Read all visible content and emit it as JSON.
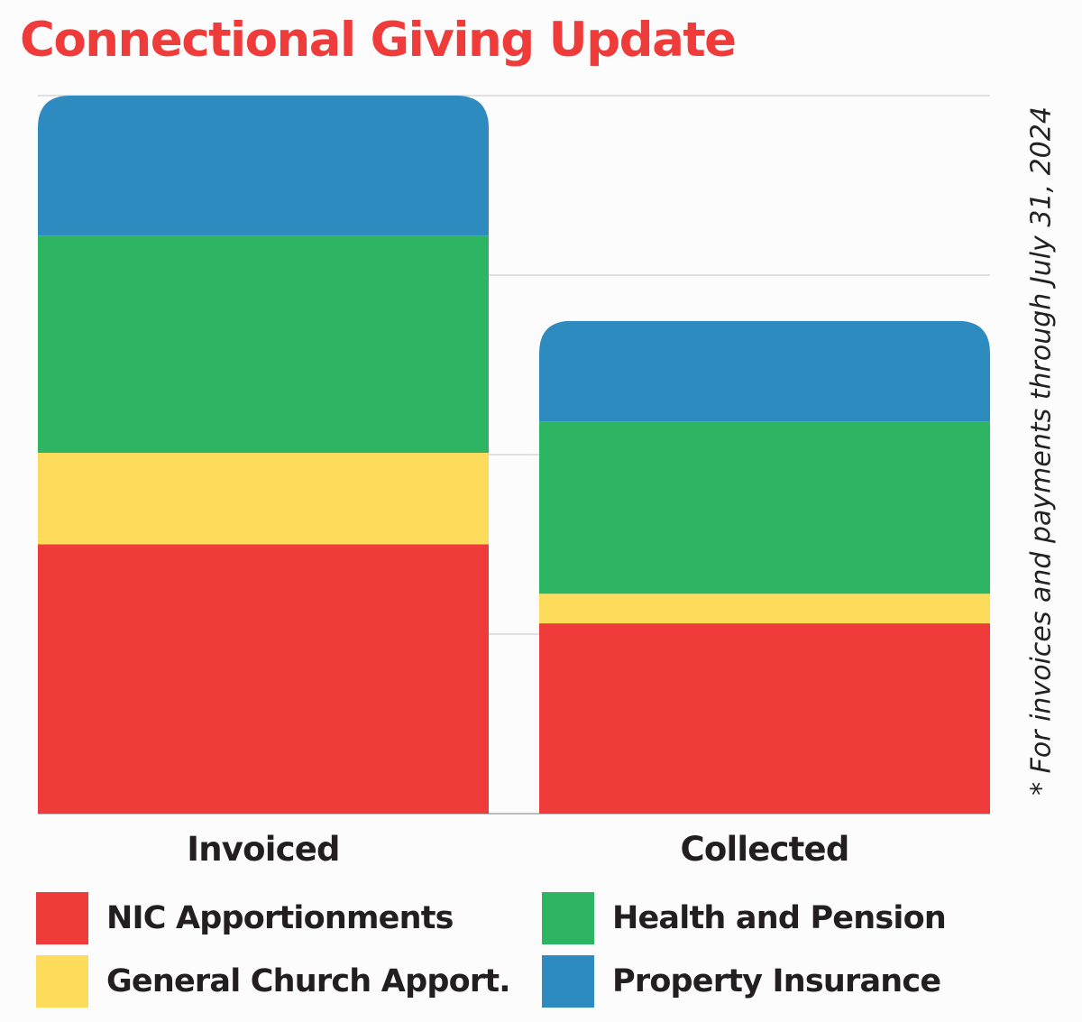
{
  "chart_data": {
    "type": "bar",
    "stacked": true,
    "title": "Connectional Giving Update",
    "footnote": "* For invoices and payments through July 31, 2024",
    "categories": [
      "Invoiced",
      "Collected"
    ],
    "series": [
      {
        "name": "NIC Apportionments",
        "color": "#ef3b39",
        "values": [
          300,
          212
        ]
      },
      {
        "name": "General Church Apport.",
        "color": "#fddc5c",
        "values": [
          102,
          33
        ]
      },
      {
        "name": "Health and Pension",
        "color": "#2eb564",
        "values": [
          242,
          192
        ]
      },
      {
        "name": "Property Insurance",
        "color": "#2e8bbf",
        "values": [
          156,
          112
        ]
      }
    ],
    "ylim": [
      0,
      800
    ],
    "grid": true,
    "legend_position": "bottom"
  }
}
